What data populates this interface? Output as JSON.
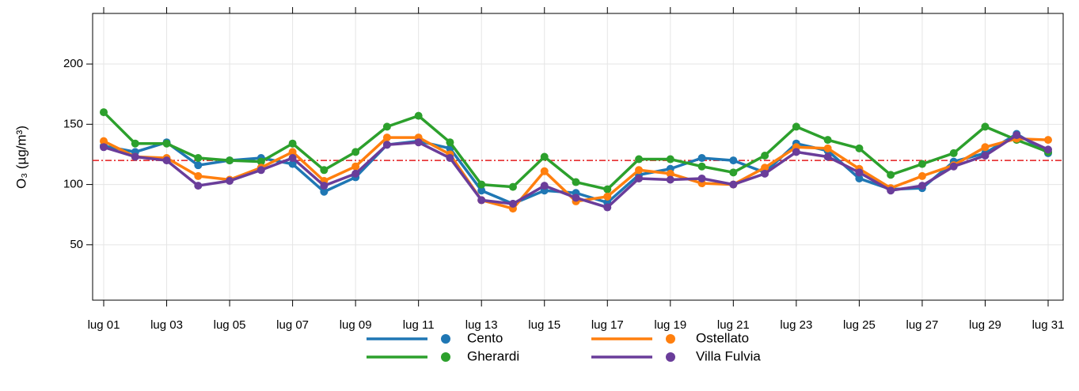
{
  "chart_data": {
    "type": "line",
    "y_label": "O₃ (µg/m³)",
    "categories": [
      "lug 01",
      null,
      "lug 03",
      null,
      "lug 05",
      null,
      "lug 07",
      null,
      "lug 09",
      null,
      "lug 11",
      null,
      "lug 13",
      null,
      "lug 15",
      null,
      "lug 17",
      null,
      "lug 19",
      null,
      "lug 21",
      null,
      "lug 23",
      null,
      "lug 25",
      null,
      "lug 27",
      null,
      "lug 29",
      null,
      "lug 31"
    ],
    "series": [
      {
        "name": "Cento",
        "color": "#1f77b4",
        "values": [
          132,
          127,
          135,
          116,
          120,
          122,
          117,
          94,
          106,
          133,
          136,
          130,
          95,
          84,
          95,
          93,
          85,
          108,
          113,
          122,
          120,
          110,
          134,
          128,
          105,
          96,
          97,
          119,
          126,
          142,
          126
        ]
      },
      {
        "name": "Gherardi",
        "color": "#2ca02c",
        "values": [
          160,
          134,
          134,
          122,
          120,
          119,
          134,
          112,
          127,
          148,
          157,
          135,
          100,
          98,
          123,
          102,
          96,
          121,
          121,
          115,
          110,
          124,
          148,
          137,
          130,
          108,
          117,
          126,
          148,
          137,
          127
        ]
      },
      {
        "name": "Ostellato",
        "color": "#ff7f0e",
        "values": [
          136,
          123,
          122,
          107,
          104,
          114,
          127,
          103,
          115,
          139,
          139,
          125,
          87,
          80,
          111,
          86,
          90,
          112,
          109,
          101,
          100,
          114,
          131,
          130,
          113,
          97,
          107,
          116,
          131,
          138,
          137
        ]
      },
      {
        "name": "Villa Fulvia",
        "color": "#6a3d9a",
        "values": [
          131,
          123,
          120,
          99,
          103,
          112,
          122,
          99,
          109,
          133,
          135,
          122,
          87,
          84,
          99,
          89,
          81,
          105,
          104,
          105,
          100,
          109,
          127,
          123,
          110,
          95,
          99,
          115,
          124,
          141,
          129
        ]
      }
    ],
    "threshold": 120,
    "threshold_color": "#e41a1c",
    "ylim": [
      4,
      242
    ],
    "yticks": [
      50,
      100,
      150,
      200
    ],
    "grid": true
  }
}
